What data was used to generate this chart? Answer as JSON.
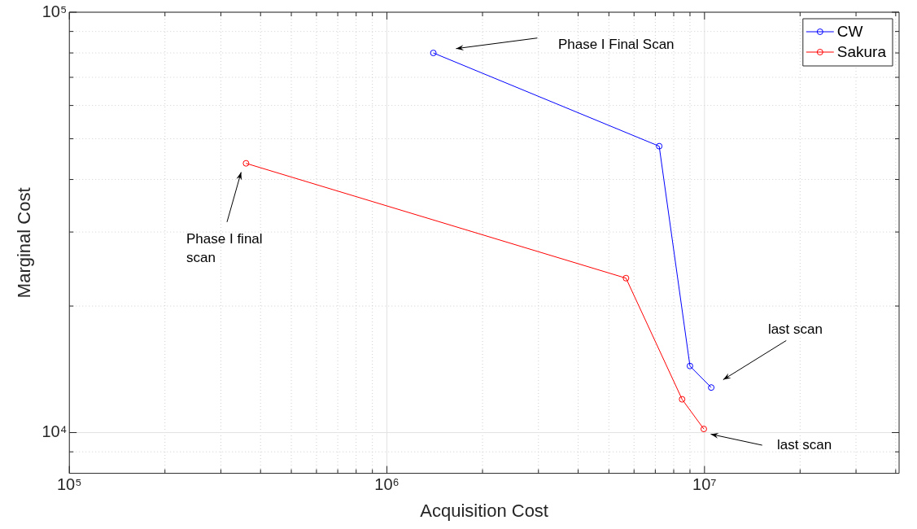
{
  "chart_data": {
    "type": "line",
    "xlabel": "Acquisition Cost",
    "ylabel": "Marginal Cost",
    "log": "xy",
    "grid": true,
    "legend": "top right",
    "marker": "circle",
    "line_style": "solid",
    "xlim": [
      100000,
      41000000
    ],
    "ylim": [
      8000,
      100000
    ],
    "xticks": [
      {
        "value": 100000,
        "label": "10⁵"
      },
      {
        "value": 200000,
        "label": null
      },
      {
        "value": 300000,
        "label": null
      },
      {
        "value": 400000,
        "label": null
      },
      {
        "value": 500000,
        "label": null
      },
      {
        "value": 600000,
        "label": null
      },
      {
        "value": 700000,
        "label": null
      },
      {
        "value": 800000,
        "label": null
      },
      {
        "value": 900000,
        "label": null
      },
      {
        "value": 1000000,
        "label": "10⁶"
      },
      {
        "value": 2000000,
        "label": null
      },
      {
        "value": 3000000,
        "label": null
      },
      {
        "value": 4000000,
        "label": null
      },
      {
        "value": 5000000,
        "label": null
      },
      {
        "value": 6000000,
        "label": null
      },
      {
        "value": 7000000,
        "label": null
      },
      {
        "value": 8000000,
        "label": null
      },
      {
        "value": 9000000,
        "label": null
      },
      {
        "value": 10000000,
        "label": "10⁷"
      },
      {
        "value": 20000000,
        "label": null
      },
      {
        "value": 30000000,
        "label": null
      },
      {
        "value": 40000000,
        "label": null
      }
    ],
    "yticks": [
      {
        "value": 9000,
        "label": null
      },
      {
        "value": 10000,
        "label": "10⁴"
      },
      {
        "value": 20000,
        "label": null
      },
      {
        "value": 30000,
        "label": null
      },
      {
        "value": 40000,
        "label": null
      },
      {
        "value": 50000,
        "label": null
      },
      {
        "value": 60000,
        "label": null
      },
      {
        "value": 70000,
        "label": null
      },
      {
        "value": 80000,
        "label": null
      },
      {
        "value": 90000,
        "label": null
      },
      {
        "value": 100000,
        "label": "10⁵"
      }
    ],
    "series": [
      {
        "name": "CW",
        "color": "#0000ff",
        "x": [
          1400000,
          7200000,
          9000000,
          10500000
        ],
        "values": [
          80000,
          48000,
          14400,
          12800
        ]
      },
      {
        "name": "Sakura",
        "color": "#ff0000",
        "x": [
          360000,
          5660000,
          8500000,
          9950000
        ],
        "values": [
          43700,
          23300,
          12000,
          10200
        ]
      }
    ],
    "annotations": [
      "Phase I Final Scan",
      "Phase I final scan",
      "last scan",
      "last scan"
    ]
  }
}
